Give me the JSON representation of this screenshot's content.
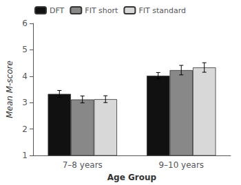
{
  "chart_data": {
    "type": "bar",
    "categories": [
      "7–8 years",
      "9–10 years"
    ],
    "series": [
      {
        "name": "DFT",
        "color": "#111111",
        "values": [
          3.33,
          4.02
        ],
        "errors": [
          0.13,
          0.12
        ]
      },
      {
        "name": "FIT short",
        "color": "#888888",
        "values": [
          3.12,
          4.23
        ],
        "errors": [
          0.13,
          0.18
        ]
      },
      {
        "name": "FIT standard",
        "color": "#d8d8d8",
        "values": [
          3.13,
          4.33
        ],
        "errors": [
          0.13,
          0.18
        ]
      }
    ],
    "xlabel": "Age Group",
    "ylabel": "Mean Μ-score",
    "ylim": [
      1,
      6
    ],
    "yticks": [
      1,
      2,
      3,
      4,
      5,
      6
    ],
    "grid": false,
    "legend": "upper left"
  }
}
